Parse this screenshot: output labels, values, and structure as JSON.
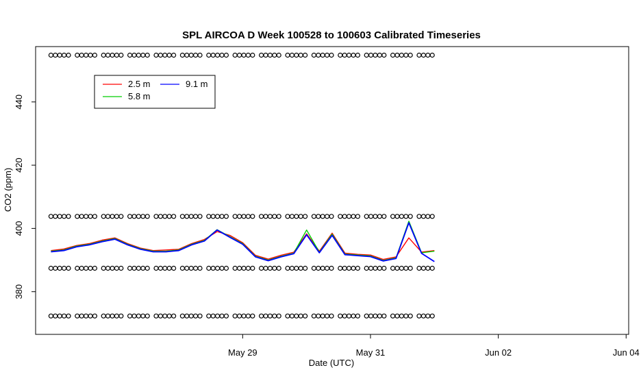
{
  "chart_data": {
    "type": "line",
    "title": "SPL AIRCOA D  Week 100528 to 100603  Calibrated Timeseries",
    "xlabel": "Date (UTC)",
    "ylabel": "CO2 (ppm)",
    "xlim": [
      -0.62,
      4.02
    ],
    "ylim": [
      366.5,
      457.5
    ],
    "x_ticks": [
      {
        "value": 1,
        "label": "May 29"
      },
      {
        "value": 2,
        "label": "May 31"
      },
      {
        "value": 3,
        "label": "Jun 02"
      },
      {
        "value": 4,
        "label": "Jun 04"
      }
    ],
    "y_ticks": [
      {
        "value": 380,
        "label": "380"
      },
      {
        "value": 400,
        "label": "400"
      },
      {
        "value": 420,
        "label": "420"
      },
      {
        "value": 440,
        "label": "440"
      }
    ],
    "x_units_note": "",
    "grid": false,
    "legend_position": "top-left",
    "legend": [
      {
        "label": "2.5 m",
        "color": "#ff0000"
      },
      {
        "label": "5.8 m",
        "color": "#00cd00"
      },
      {
        "label": "9.1 m",
        "color": "#0000ff"
      }
    ],
    "series": [
      {
        "name": "2.5 m",
        "color": "#ff0000",
        "x": [
          -0.5,
          -0.4,
          -0.3,
          -0.2,
          -0.1,
          0,
          0.1,
          0.2,
          0.3,
          0.4,
          0.5,
          0.6,
          0.7,
          0.8,
          0.9,
          1.0,
          1.1,
          1.2,
          1.3,
          1.4,
          1.5,
          1.6,
          1.7,
          1.8,
          1.9,
          2.0,
          2.1,
          2.2,
          2.3,
          2.4,
          2.5
        ],
        "y": [
          393.0,
          393.5,
          394.6,
          395.2,
          396.3,
          397.0,
          395.2,
          393.8,
          393.0,
          393.2,
          393.4,
          395.2,
          396.5,
          399.0,
          397.8,
          395.5,
          391.5,
          390.3,
          391.5,
          392.5,
          398.3,
          392.8,
          398.5,
          392.2,
          391.8,
          391.6,
          390.2,
          391.0,
          397.0,
          392.5,
          393.0
        ]
      },
      {
        "name": "5.8 m",
        "color": "#00cd00",
        "x": [
          -0.5,
          -0.4,
          -0.3,
          -0.2,
          -0.1,
          0,
          0.1,
          0.2,
          0.3,
          0.4,
          0.5,
          0.6,
          0.7,
          0.8,
          0.9,
          1.0,
          1.1,
          1.2,
          1.3,
          1.4,
          1.5,
          1.6,
          1.7,
          1.8,
          1.9,
          2.0,
          2.1,
          2.2,
          2.3,
          2.4,
          2.5
        ],
        "y": [
          392.8,
          393.2,
          394.4,
          395.0,
          396.0,
          396.8,
          395.0,
          393.6,
          392.8,
          392.8,
          393.2,
          395.0,
          396.2,
          399.6,
          397.4,
          395.2,
          391.2,
          390.0,
          391.2,
          392.2,
          399.5,
          392.5,
          398.2,
          391.9,
          391.6,
          391.3,
          389.9,
          390.7,
          402.3,
          392.3,
          392.8
        ]
      },
      {
        "name": "9.1 m",
        "color": "#0000ff",
        "x": [
          -0.5,
          -0.4,
          -0.3,
          -0.2,
          -0.1,
          0,
          0.1,
          0.2,
          0.3,
          0.4,
          0.5,
          0.6,
          0.7,
          0.8,
          0.9,
          1.0,
          1.1,
          1.2,
          1.3,
          1.4,
          1.5,
          1.6,
          1.7,
          1.8,
          1.9,
          2.0,
          2.1,
          2.2,
          2.3,
          2.4,
          2.5
        ],
        "y": [
          392.6,
          393.0,
          394.2,
          394.8,
          395.8,
          396.6,
          394.8,
          393.4,
          392.6,
          392.6,
          393.0,
          394.8,
          396.0,
          399.5,
          397.2,
          395.0,
          391.0,
          389.8,
          391.0,
          392.0,
          398.0,
          392.3,
          397.8,
          391.7,
          391.4,
          391.1,
          389.7,
          390.5,
          401.8,
          392.1,
          389.5
        ]
      }
    ],
    "marker_rows": [
      {
        "y": 454.8
      },
      {
        "y": 403.8
      },
      {
        "y": 387.4
      },
      {
        "y": 372.3
      }
    ],
    "marker_x_range": [
      -0.5,
      2.5
    ],
    "marker_symbol": "o"
  }
}
